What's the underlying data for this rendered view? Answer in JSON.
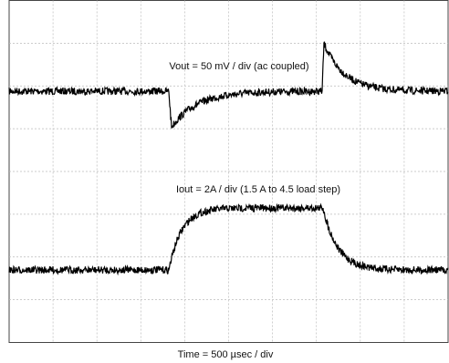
{
  "annotations": {
    "vout": "Vout = 50 mV / div (ac coupled)",
    "iout": "Iout = 2A / div (1.5 A to 4.5 load step)"
  },
  "xlabel": "Time = 500 µsec / div"
}
